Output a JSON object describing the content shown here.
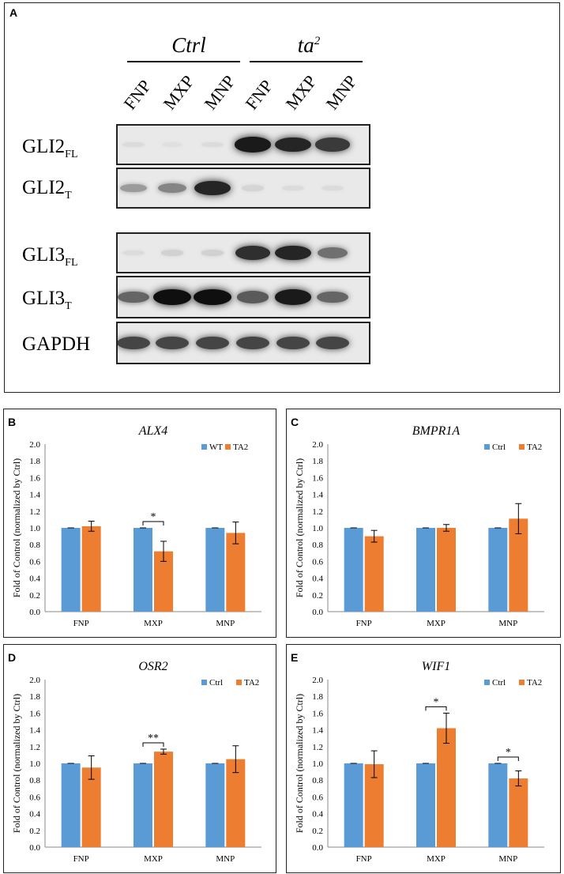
{
  "panel_a": {
    "label": "A",
    "groups": [
      "Ctrl",
      "ta2"
    ],
    "lanes": [
      "FNP",
      "MXP",
      "MNP",
      "FNP",
      "MXP",
      "MNP"
    ],
    "rows": [
      {
        "base": "GLI2",
        "sub": "FL",
        "intensity": [
          0.05,
          0.03,
          0.05,
          0.95,
          0.9,
          0.8
        ]
      },
      {
        "base": "GLI2",
        "sub": "T",
        "intensity": [
          0.35,
          0.45,
          0.9,
          0.08,
          0.05,
          0.05
        ]
      },
      {
        "base": "GLI3",
        "sub": "FL",
        "intensity": [
          0.05,
          0.1,
          0.1,
          0.85,
          0.9,
          0.55
        ]
      },
      {
        "base": "GLI3",
        "sub": "T",
        "intensity": [
          0.6,
          1.0,
          1.0,
          0.65,
          0.95,
          0.6
        ]
      },
      {
        "base": "GAPDH",
        "sub": "",
        "intensity": [
          0.75,
          0.75,
          0.75,
          0.75,
          0.75,
          0.75
        ]
      }
    ]
  },
  "chart_data": [
    {
      "panel": "B",
      "type": "bar",
      "title": "ALX4",
      "ylabel": "Fold of Control (normalized by Ctrl)",
      "ylim": [
        0,
        2.0
      ],
      "ytick_step": 0.2,
      "categories": [
        "FNP",
        "MXP",
        "MNP"
      ],
      "legend_position": "top-right",
      "series": [
        {
          "name": "WT",
          "color": "#5b9bd5",
          "values": [
            1.0,
            1.0,
            1.0
          ],
          "errors": [
            0.0,
            0.0,
            0.0
          ]
        },
        {
          "name": "TA2",
          "color": "#ed7d31",
          "values": [
            1.02,
            0.72,
            0.94
          ],
          "errors": [
            0.06,
            0.12,
            0.13
          ]
        }
      ],
      "significance": [
        {
          "category": "MXP",
          "label": "*"
        }
      ]
    },
    {
      "panel": "C",
      "type": "bar",
      "title": "BMPR1A",
      "ylabel": "Fold of Control (normalized by Ctrl)",
      "ylim": [
        0,
        2.0
      ],
      "ytick_step": 0.2,
      "categories": [
        "FNP",
        "MXP",
        "MNP"
      ],
      "legend_position": "top-right",
      "series": [
        {
          "name": "Ctrl",
          "color": "#5b9bd5",
          "values": [
            1.0,
            1.0,
            1.0
          ],
          "errors": [
            0.0,
            0.0,
            0.0
          ]
        },
        {
          "name": "TA2",
          "color": "#ed7d31",
          "values": [
            0.9,
            1.0,
            1.11
          ],
          "errors": [
            0.07,
            0.04,
            0.18
          ]
        }
      ],
      "significance": []
    },
    {
      "panel": "D",
      "type": "bar",
      "title": "OSR2",
      "ylabel": "Fold of Control (normalized by Ctrl)",
      "ylim": [
        0,
        2.0
      ],
      "ytick_step": 0.2,
      "categories": [
        "FNP",
        "MXP",
        "MNP"
      ],
      "legend_position": "top-right",
      "series": [
        {
          "name": "Ctrl",
          "color": "#5b9bd5",
          "values": [
            1.0,
            1.0,
            1.0
          ],
          "errors": [
            0.0,
            0.0,
            0.0
          ]
        },
        {
          "name": "TA2",
          "color": "#ed7d31",
          "values": [
            0.95,
            1.14,
            1.05
          ],
          "errors": [
            0.14,
            0.03,
            0.16
          ]
        }
      ],
      "significance": [
        {
          "category": "MXP",
          "label": "**"
        }
      ]
    },
    {
      "panel": "E",
      "type": "bar",
      "title": "WIF1",
      "ylabel": "Fold of Control (normalized by Ctrl)",
      "ylim": [
        0,
        2.0
      ],
      "ytick_step": 0.2,
      "categories": [
        "FNP",
        "MXP",
        "MNP"
      ],
      "legend_position": "top-right",
      "series": [
        {
          "name": "Ctrl",
          "color": "#5b9bd5",
          "values": [
            1.0,
            1.0,
            1.0
          ],
          "errors": [
            0.0,
            0.0,
            0.0
          ]
        },
        {
          "name": "TA2",
          "color": "#ed7d31",
          "values": [
            0.99,
            1.42,
            0.82
          ],
          "errors": [
            0.16,
            0.18,
            0.09
          ]
        }
      ],
      "significance": [
        {
          "category": "MXP",
          "label": "*"
        },
        {
          "category": "MNP",
          "label": "*"
        }
      ]
    }
  ]
}
